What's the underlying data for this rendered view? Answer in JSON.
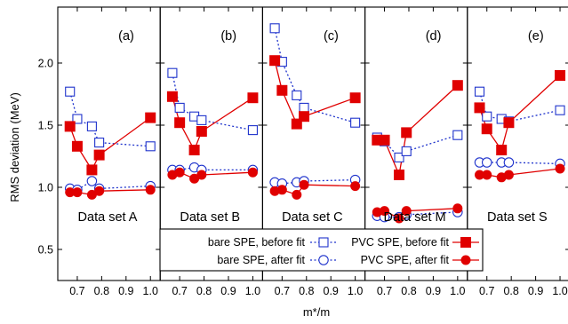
{
  "chart_data": {
    "type": "scatter",
    "ylabel": "RMS deviation (MeV)",
    "xlabel": "m*/m",
    "xlim": [
      0.62,
      1.04
    ],
    "ylim": [
      0.25,
      2.45
    ],
    "x_ticks": [
      "0.7",
      "0.8",
      "0.9",
      "1.0"
    ],
    "x_tick_values": [
      0.7,
      0.8,
      0.9,
      1.0
    ],
    "y_ticks": [
      "0.5",
      "1.0",
      "1.5",
      "2.0"
    ],
    "y_tick_values": [
      0.5,
      1.0,
      1.5,
      2.0
    ],
    "legend": {
      "placement": "bottom",
      "entries": [
        {
          "label": "bare SPE, before fit",
          "series": "bare_before"
        },
        {
          "label": "bare SPE, after fit",
          "series": "bare_after"
        },
        {
          "label": "PVC SPE, before fit",
          "series": "pvc_before"
        },
        {
          "label": "PVC SPE, after fit",
          "series": "pvc_after"
        }
      ]
    },
    "styles": {
      "bare_before": {
        "color": "#1f33cc",
        "marker": "square-open",
        "dash": true
      },
      "bare_after": {
        "color": "#1f33cc",
        "marker": "circle-open",
        "dash": true
      },
      "pvc_before": {
        "color": "#e00000",
        "marker": "square-filled",
        "dash": false
      },
      "pvc_after": {
        "color": "#e00000",
        "marker": "circle-filled",
        "dash": false
      }
    },
    "panels": [
      {
        "tag": "(a)",
        "caption": "Data set A",
        "series": {
          "bare_before": {
            "x": [
              0.67,
              0.7,
              0.76,
              0.79,
              1.0
            ],
            "y": [
              1.77,
              1.55,
              1.49,
              1.36,
              1.33
            ]
          },
          "bare_after": {
            "x": [
              0.67,
              0.7,
              0.76,
              0.79,
              1.0
            ],
            "y": [
              0.99,
              0.98,
              1.05,
              0.99,
              1.01
            ]
          },
          "pvc_before": {
            "x": [
              0.67,
              0.7,
              0.76,
              0.79,
              1.0
            ],
            "y": [
              1.49,
              1.33,
              1.14,
              1.26,
              1.56
            ]
          },
          "pvc_after": {
            "x": [
              0.67,
              0.7,
              0.76,
              0.79,
              1.0
            ],
            "y": [
              0.96,
              0.96,
              0.94,
              0.97,
              0.98
            ]
          }
        }
      },
      {
        "tag": "(b)",
        "caption": "Data set B",
        "series": {
          "bare_before": {
            "x": [
              0.67,
              0.7,
              0.76,
              0.79,
              1.0
            ],
            "y": [
              1.92,
              1.64,
              1.57,
              1.54,
              1.46
            ]
          },
          "bare_after": {
            "x": [
              0.67,
              0.7,
              0.76,
              0.79,
              1.0
            ],
            "y": [
              1.14,
              1.14,
              1.16,
              1.14,
              1.14
            ]
          },
          "pvc_before": {
            "x": [
              0.67,
              0.7,
              0.76,
              0.79,
              1.0
            ],
            "y": [
              1.73,
              1.52,
              1.3,
              1.45,
              1.72
            ]
          },
          "pvc_after": {
            "x": [
              0.67,
              0.7,
              0.76,
              0.79,
              1.0
            ],
            "y": [
              1.1,
              1.12,
              1.07,
              1.1,
              1.12
            ]
          }
        }
      },
      {
        "tag": "(c)",
        "caption": "Data set C",
        "series": {
          "bare_before": {
            "x": [
              0.67,
              0.7,
              0.76,
              0.79,
              1.0
            ],
            "y": [
              2.28,
              2.01,
              1.74,
              1.64,
              1.52
            ]
          },
          "bare_after": {
            "x": [
              0.67,
              0.7,
              0.76,
              0.79,
              1.0
            ],
            "y": [
              1.04,
              1.03,
              1.04,
              1.05,
              1.06
            ]
          },
          "pvc_before": {
            "x": [
              0.67,
              0.7,
              0.76,
              0.79,
              1.0
            ],
            "y": [
              2.02,
              1.78,
              1.51,
              1.57,
              1.72
            ]
          },
          "pvc_after": {
            "x": [
              0.67,
              0.7,
              0.76,
              0.79,
              1.0
            ],
            "y": [
              0.97,
              0.98,
              0.94,
              1.02,
              1.01
            ]
          }
        }
      },
      {
        "tag": "(d)",
        "caption": "Data set M",
        "series": {
          "bare_before": {
            "x": [
              0.67,
              0.7,
              0.76,
              0.79,
              1.0
            ],
            "y": [
              1.4,
              1.37,
              1.24,
              1.29,
              1.42
            ]
          },
          "bare_after": {
            "x": [
              0.67,
              0.7,
              0.76,
              0.79,
              1.0
            ],
            "y": [
              0.77,
              0.76,
              0.76,
              0.78,
              0.8
            ]
          },
          "pvc_before": {
            "x": [
              0.67,
              0.7,
              0.76,
              0.79,
              1.0
            ],
            "y": [
              1.38,
              1.38,
              1.1,
              1.44,
              1.82
            ]
          },
          "pvc_after": {
            "x": [
              0.67,
              0.7,
              0.76,
              0.79,
              1.0
            ],
            "y": [
              0.8,
              0.81,
              0.75,
              0.81,
              0.83
            ]
          }
        }
      },
      {
        "tag": "(e)",
        "caption": "Data set S",
        "series": {
          "bare_before": {
            "x": [
              0.67,
              0.7,
              0.76,
              0.79,
              1.0
            ],
            "y": [
              1.77,
              1.57,
              1.55,
              1.53,
              1.62
            ]
          },
          "bare_after": {
            "x": [
              0.67,
              0.7,
              0.76,
              0.79,
              1.0
            ],
            "y": [
              1.2,
              1.2,
              1.2,
              1.2,
              1.19
            ]
          },
          "pvc_before": {
            "x": [
              0.67,
              0.7,
              0.76,
              0.79,
              1.0
            ],
            "y": [
              1.64,
              1.47,
              1.3,
              1.52,
              1.9
            ]
          },
          "pvc_after": {
            "x": [
              0.67,
              0.7,
              0.76,
              0.79,
              1.0
            ],
            "y": [
              1.1,
              1.1,
              1.08,
              1.1,
              1.15
            ]
          }
        }
      }
    ]
  }
}
